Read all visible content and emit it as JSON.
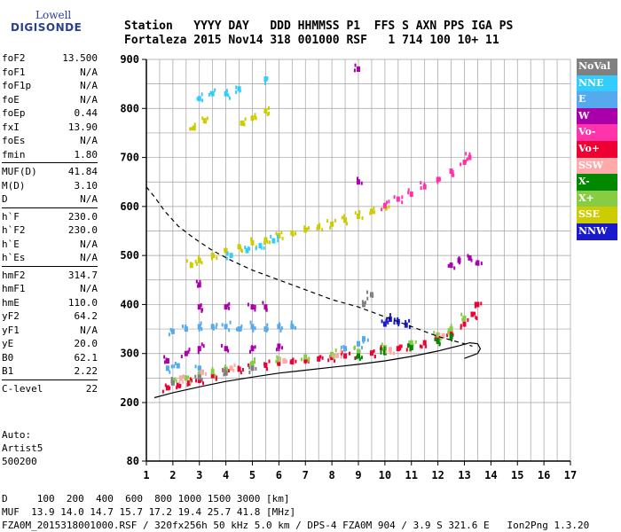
{
  "logo": {
    "line1": "Lowell",
    "line2": "DIGISONDE"
  },
  "header": {
    "labels": "Station   YYYY DAY   DDD HHMMSS P1  FFS S AXN PPS IGA PS",
    "values": "Fortaleza 2015 Nov14 318 001000 RSF   1 714 100 10+ 11"
  },
  "params": [
    [
      {
        "k": "foF2",
        "v": "13.500"
      },
      {
        "k": "foF1",
        "v": "N/A"
      },
      {
        "k": "foF1p",
        "v": "N/A"
      },
      {
        "k": "foE",
        "v": "N/A"
      },
      {
        "k": "foEp",
        "v": "0.44"
      },
      {
        "k": "fxI",
        "v": "13.90"
      },
      {
        "k": "foEs",
        "v": "N/A"
      },
      {
        "k": "fmin",
        "v": "1.80"
      }
    ],
    [
      {
        "k": "MUF(D)",
        "v": "41.84"
      },
      {
        "k": "M(D)",
        "v": "3.10"
      },
      {
        "k": "D",
        "v": "N/A"
      }
    ],
    [
      {
        "k": "h`F",
        "v": "230.0"
      },
      {
        "k": "h`F2",
        "v": "230.0"
      },
      {
        "k": "h`E",
        "v": "N/A"
      },
      {
        "k": "h`Es",
        "v": "N/A"
      }
    ],
    [
      {
        "k": "hmF2",
        "v": "314.7"
      },
      {
        "k": "hmF1",
        "v": "N/A"
      },
      {
        "k": "hmE",
        "v": "110.0"
      },
      {
        "k": "yF2",
        "v": "64.2"
      },
      {
        "k": "yF1",
        "v": "N/A"
      },
      {
        "k": "yE",
        "v": "20.0"
      },
      {
        "k": "B0",
        "v": "62.1"
      },
      {
        "k": "B1",
        "v": "2.22"
      }
    ],
    [
      {
        "k": "C-level",
        "v": "22"
      }
    ]
  ],
  "auto": {
    "line1": "Auto:",
    "line2": "Artist5",
    "line3": "500200"
  },
  "footer": {
    "d_row": "D     100  200  400  600  800 1000 1500 3000 [km]",
    "muf_row": "MUF  13.9 14.0 14.7 15.7 17.2 19.4 25.7 41.8 [MHz]",
    "info": "FZA0M_2015318001000.RSF / 320fx256h 50 kHz 5.0 km / DPS-4 FZA0M 904 / 3.9 S 321.6 E   Ion2Png 1.3.20"
  },
  "legend": [
    {
      "label": "NoVal",
      "color": "#808080"
    },
    {
      "label": "NNE",
      "color": "#33ccff"
    },
    {
      "label": "E",
      "color": "#55aaee"
    },
    {
      "label": "W",
      "color": "#aa00aa"
    },
    {
      "label": "Vo-",
      "color": "#ff33aa"
    },
    {
      "label": "Vo+",
      "color": "#ee0033"
    },
    {
      "label": "SSW",
      "color": "#ffaaaa"
    },
    {
      "label": "X-",
      "color": "#008800"
    },
    {
      "label": "X+",
      "color": "#88cc44"
    },
    {
      "label": "SSE",
      "color": "#cccc00"
    },
    {
      "label": "NNW",
      "color": "#1a1acc"
    }
  ],
  "chart_data": {
    "type": "scatter",
    "x_ticks": [
      1,
      2,
      3,
      4,
      5,
      6,
      7,
      8,
      9,
      10,
      11,
      12,
      13,
      14,
      15,
      16,
      17
    ],
    "y_ticks": [
      80,
      200,
      300,
      400,
      500,
      600,
      700,
      800,
      900
    ],
    "xlim": [
      1,
      17
    ],
    "ylim_top": 900,
    "grid": true,
    "series": [
      {
        "name": "Vo+",
        "color": "#ee0033",
        "points": [
          [
            1.8,
            230
          ],
          [
            2.2,
            235
          ],
          [
            2.6,
            240
          ],
          [
            3.0,
            245
          ],
          [
            3.5,
            255
          ],
          [
            4.0,
            262
          ],
          [
            4.5,
            268
          ],
          [
            5.0,
            272
          ],
          [
            5.5,
            276
          ],
          [
            6.0,
            280
          ],
          [
            6.5,
            283
          ],
          [
            7.0,
            286
          ],
          [
            7.5,
            289
          ],
          [
            8.0,
            292
          ],
          [
            8.5,
            295
          ],
          [
            9.0,
            298
          ],
          [
            9.5,
            301
          ],
          [
            10.0,
            305
          ],
          [
            10.5,
            310
          ],
          [
            11.0,
            315
          ],
          [
            11.5,
            322
          ],
          [
            12.0,
            330
          ],
          [
            12.5,
            342
          ],
          [
            13.0,
            360
          ],
          [
            13.3,
            380
          ],
          [
            13.5,
            400
          ]
        ]
      },
      {
        "name": "X+",
        "color": "#88cc44",
        "points": [
          [
            2.0,
            245
          ],
          [
            2.5,
            250
          ],
          [
            3.0,
            258
          ],
          [
            3.5,
            263
          ],
          [
            4.0,
            268
          ],
          [
            5.0,
            280
          ],
          [
            6.0,
            288
          ],
          [
            7.0,
            293
          ],
          [
            8.0,
            298
          ],
          [
            9.0,
            304
          ],
          [
            10.0,
            312
          ],
          [
            11.0,
            322
          ],
          [
            12.0,
            338
          ],
          [
            12.5,
            350
          ],
          [
            13.0,
            372
          ]
        ]
      },
      {
        "name": "SSE",
        "color": "#cccc00",
        "points": [
          [
            2.7,
            480
          ],
          [
            3.0,
            490
          ],
          [
            3.5,
            500
          ],
          [
            4.0,
            510
          ],
          [
            4.5,
            518
          ],
          [
            5.0,
            526
          ],
          [
            5.5,
            532
          ],
          [
            6.0,
            540
          ],
          [
            6.5,
            546
          ],
          [
            7.0,
            552
          ],
          [
            7.5,
            558
          ],
          [
            8.0,
            564
          ],
          [
            8.5,
            572
          ],
          [
            9.0,
            580
          ],
          [
            9.5,
            590
          ],
          [
            10.0,
            600
          ],
          [
            2.8,
            760
          ],
          [
            3.2,
            775
          ],
          [
            4.6,
            770
          ],
          [
            5.0,
            780
          ],
          [
            5.5,
            795
          ]
        ]
      },
      {
        "name": "Vo-",
        "color": "#ff33aa",
        "points": [
          [
            10.0,
            602
          ],
          [
            10.5,
            615
          ],
          [
            11.0,
            625
          ],
          [
            11.5,
            640
          ],
          [
            12.0,
            655
          ],
          [
            12.5,
            672
          ],
          [
            13.0,
            690
          ],
          [
            13.2,
            700
          ]
        ]
      },
      {
        "name": "W",
        "color": "#aa00aa",
        "points": [
          [
            1.8,
            285
          ],
          [
            2.5,
            300
          ],
          [
            3.0,
            310
          ],
          [
            4.0,
            310
          ],
          [
            5.0,
            310
          ],
          [
            6.0,
            315
          ],
          [
            3.0,
            395
          ],
          [
            4.0,
            395
          ],
          [
            5.0,
            395
          ],
          [
            5.5,
            395
          ],
          [
            12.5,
            480
          ],
          [
            12.8,
            490
          ],
          [
            13.2,
            495
          ],
          [
            13.5,
            485
          ],
          [
            3.0,
            440
          ],
          [
            9.0,
            650
          ],
          [
            9.0,
            880
          ]
        ]
      },
      {
        "name": "E",
        "color": "#55aaee",
        "points": [
          [
            2.0,
            345
          ],
          [
            2.5,
            350
          ],
          [
            3.0,
            355
          ],
          [
            3.5,
            355
          ],
          [
            4.0,
            355
          ],
          [
            4.5,
            350
          ],
          [
            5.0,
            355
          ],
          [
            5.5,
            350
          ],
          [
            6.0,
            355
          ],
          [
            6.5,
            355
          ],
          [
            1.8,
            270
          ],
          [
            2.2,
            275
          ],
          [
            3.0,
            270
          ],
          [
            8.5,
            310
          ],
          [
            9.0,
            320
          ],
          [
            9.2,
            330
          ]
        ]
      },
      {
        "name": "NNE",
        "color": "#33ccff",
        "points": [
          [
            4.2,
            500
          ],
          [
            4.8,
            510
          ],
          [
            5.3,
            520
          ],
          [
            5.8,
            530
          ],
          [
            3.0,
            820
          ],
          [
            3.5,
            830
          ],
          [
            4.0,
            830
          ],
          [
            4.5,
            840
          ],
          [
            5.5,
            860
          ]
        ]
      },
      {
        "name": "NNW",
        "color": "#1a1acc",
        "points": [
          [
            10.0,
            360
          ],
          [
            10.2,
            370
          ],
          [
            10.5,
            365
          ],
          [
            10.8,
            358
          ]
        ]
      },
      {
        "name": "X-",
        "color": "#008800",
        "points": [
          [
            9.0,
            295
          ],
          [
            10.0,
            302
          ],
          [
            11.0,
            312
          ],
          [
            12.0,
            325
          ],
          [
            12.5,
            335
          ]
        ]
      },
      {
        "name": "SSW",
        "color": "#ffaaaa",
        "points": [
          [
            2.3,
            250
          ],
          [
            3.1,
            262
          ],
          [
            4.2,
            270
          ],
          [
            6.2,
            285
          ],
          [
            8.2,
            296
          ],
          [
            10.2,
            308
          ],
          [
            12.2,
            336
          ]
        ]
      },
      {
        "name": "NoVal",
        "color": "#808080",
        "points": [
          [
            2.0,
            240
          ],
          [
            3.0,
            252
          ],
          [
            4.0,
            260
          ],
          [
            5.0,
            270
          ],
          [
            9.2,
            400
          ],
          [
            9.5,
            420
          ]
        ]
      }
    ],
    "curves": [
      {
        "style": "solid",
        "points": [
          [
            1.3,
            210
          ],
          [
            2.0,
            220
          ],
          [
            3.0,
            232
          ],
          [
            4.0,
            243
          ],
          [
            5.0,
            252
          ],
          [
            6.0,
            260
          ],
          [
            7.0,
            266
          ],
          [
            8.0,
            272
          ],
          [
            9.0,
            278
          ],
          [
            10.0,
            285
          ],
          [
            11.0,
            294
          ],
          [
            12.0,
            305
          ],
          [
            12.8,
            316
          ],
          [
            13.2,
            322
          ],
          [
            13.5,
            320
          ],
          [
            13.6,
            310
          ],
          [
            13.5,
            300
          ],
          [
            13.0,
            290
          ]
        ]
      },
      {
        "style": "dashed",
        "points": [
          [
            1.0,
            640
          ],
          [
            1.3,
            620
          ],
          [
            1.7,
            590
          ],
          [
            2.2,
            560
          ],
          [
            2.8,
            535
          ],
          [
            3.5,
            510
          ],
          [
            4.2,
            490
          ],
          [
            5.0,
            470
          ],
          [
            6.0,
            450
          ],
          [
            7.0,
            430
          ],
          [
            8.0,
            410
          ],
          [
            9.0,
            395
          ],
          [
            10.0,
            375
          ],
          [
            11.0,
            355
          ],
          [
            12.0,
            335
          ],
          [
            13.0,
            320
          ],
          [
            13.3,
            315
          ]
        ]
      }
    ]
  }
}
